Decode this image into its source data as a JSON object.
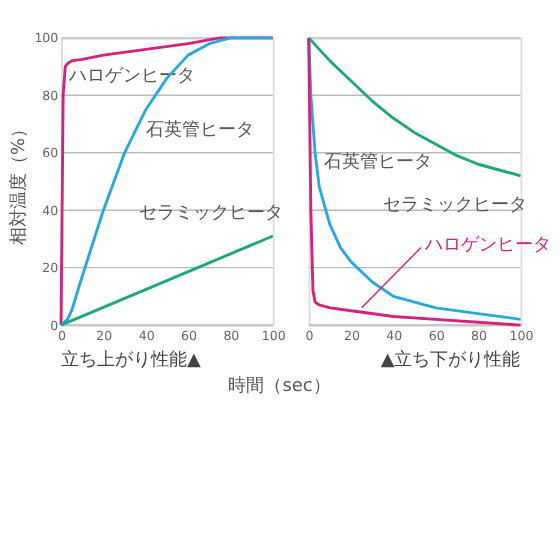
{
  "chart_data": [
    {
      "type": "line",
      "ylabel": "相対温度（%）",
      "xlabel": "時間（sec）",
      "xlim": [
        0,
        100
      ],
      "ylim": [
        0,
        100
      ],
      "xticks": [
        0,
        20,
        40,
        60,
        80,
        100
      ],
      "yticks": [
        0,
        20,
        40,
        60,
        80,
        100
      ],
      "grid": "y",
      "line_style": "solid",
      "marker": "none",
      "series": [
        {
          "name": "ハロゲンヒータ",
          "color": "#d6217e",
          "x": [
            0,
            1,
            2,
            3,
            5,
            10,
            20,
            40,
            60,
            75,
            100
          ],
          "values": [
            0,
            80,
            90,
            91,
            92,
            92.5,
            94,
            96,
            98,
            100,
            100
          ]
        },
        {
          "name": "石英管ヒータ",
          "color": "#29a8e0",
          "x": [
            0,
            3,
            5,
            10,
            20,
            30,
            40,
            50,
            60,
            70,
            80,
            100
          ],
          "values": [
            0,
            2,
            5,
            17,
            40,
            60,
            75,
            86,
            94,
            98,
            100,
            100
          ]
        },
        {
          "name": "セラミックヒータ",
          "color": "#1fa77a",
          "x": [
            0,
            50,
            100
          ],
          "values": [
            0,
            15.5,
            31
          ]
        }
      ],
      "annotations": [
        "立ち上がり性能▲"
      ]
    },
    {
      "type": "line",
      "xlim": [
        0,
        100
      ],
      "ylim": [
        0,
        100
      ],
      "xticks": [
        0,
        20,
        40,
        60,
        80,
        100
      ],
      "yticks": [
        0,
        20,
        40,
        60,
        80,
        100
      ],
      "tick_labels": "x",
      "grid": "y",
      "line_style": "solid",
      "marker": "none",
      "series": [
        {
          "name": "セラミックヒータ",
          "color": "#1fa77a",
          "x": [
            0,
            10,
            20,
            30,
            40,
            50,
            60,
            70,
            80,
            90,
            100
          ],
          "values": [
            100,
            92,
            85,
            78,
            72,
            67,
            63,
            59,
            56,
            54,
            52
          ]
        },
        {
          "name": "石英管ヒータ",
          "color": "#29a8e0",
          "x": [
            0,
            1,
            3,
            5,
            10,
            15,
            20,
            30,
            40,
            50,
            60,
            80,
            100
          ],
          "values": [
            100,
            80,
            60,
            48,
            35,
            27,
            22,
            15,
            10,
            8,
            6,
            4,
            2
          ]
        },
        {
          "name": "ハロゲンヒータ",
          "color": "#d6217e",
          "x": [
            0,
            1,
            2,
            3,
            5,
            10,
            20,
            40,
            60,
            80,
            100
          ],
          "values": [
            100,
            40,
            12,
            8,
            7,
            6,
            5,
            3,
            2,
            1,
            0
          ]
        }
      ],
      "annotations": [
        "▲立ち下がり性能"
      ]
    }
  ]
}
